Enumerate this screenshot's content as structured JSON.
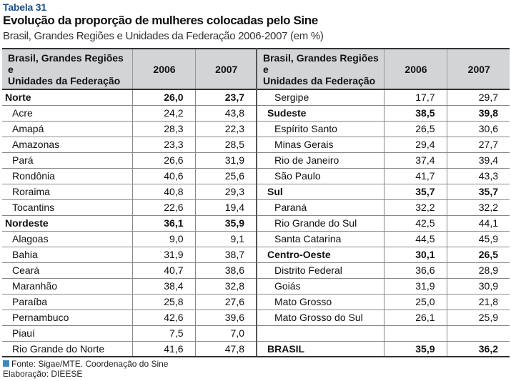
{
  "header": {
    "label": "Tabela 31",
    "title": "Evolução da proporção de mulheres colocadas pelo Sine",
    "subtitle": "Brasil, Grandes Regiões e Unidades da Federação 2006-2007 (em %)"
  },
  "table": {
    "col_region_line1": "Brasil, Grandes Regiões e",
    "col_region_line2": "Unidades da Federação",
    "col_2006": "2006",
    "col_2007": "2007",
    "rows": [
      {
        "left": {
          "name": "Norte",
          "v2006": "26,0",
          "v2007": "23,7"
        },
        "right": {
          "name": "Sergipe",
          "v2006": "17,7",
          "v2007": "29,7"
        }
      },
      {
        "left": {
          "name": "Acre",
          "v2006": "24,2",
          "v2007": "43,8"
        },
        "right": {
          "name": "Sudeste",
          "v2006": "38,5",
          "v2007": "39,8"
        }
      },
      {
        "left": {
          "name": "Amapá",
          "v2006": "28,3",
          "v2007": "22,3"
        },
        "right": {
          "name": "Espírito Santo",
          "v2006": "26,5",
          "v2007": "30,6"
        }
      },
      {
        "left": {
          "name": "Amazonas",
          "v2006": "23,3",
          "v2007": "28,5"
        },
        "right": {
          "name": "Minas Gerais",
          "v2006": "29,4",
          "v2007": "27,7"
        }
      },
      {
        "left": {
          "name": "Pará",
          "v2006": "26,6",
          "v2007": "31,9"
        },
        "right": {
          "name": "Rio de Janeiro",
          "v2006": "37,4",
          "v2007": "39,4"
        }
      },
      {
        "left": {
          "name": "Rondônia",
          "v2006": "40,6",
          "v2007": "25,6"
        },
        "right": {
          "name": "São Paulo",
          "v2006": "41,7",
          "v2007": "43,3"
        }
      },
      {
        "left": {
          "name": "Roraima",
          "v2006": "40,8",
          "v2007": "29,3"
        },
        "right": {
          "name": "Sul",
          "v2006": "35,7",
          "v2007": "35,7"
        }
      },
      {
        "left": {
          "name": "Tocantins",
          "v2006": "22,6",
          "v2007": "19,4"
        },
        "right": {
          "name": "Paraná",
          "v2006": "32,2",
          "v2007": "32,2"
        }
      },
      {
        "left": {
          "name": "Nordeste",
          "v2006": "36,1",
          "v2007": "35,9"
        },
        "right": {
          "name": "Rio Grande do Sul",
          "v2006": "42,5",
          "v2007": "44,1"
        }
      },
      {
        "left": {
          "name": "Alagoas",
          "v2006": "9,0",
          "v2007": "9,1"
        },
        "right": {
          "name": "Santa Catarina",
          "v2006": "44,5",
          "v2007": "45,9"
        }
      },
      {
        "left": {
          "name": "Bahia",
          "v2006": "31,9",
          "v2007": "38,7"
        },
        "right": {
          "name": "Centro-Oeste",
          "v2006": "30,1",
          "v2007": "26,5"
        }
      },
      {
        "left": {
          "name": "Ceará",
          "v2006": "40,7",
          "v2007": "38,6"
        },
        "right": {
          "name": "Distrito Federal",
          "v2006": "36,6",
          "v2007": "28,9"
        }
      },
      {
        "left": {
          "name": "Maranhão",
          "v2006": "38,4",
          "v2007": "32,8"
        },
        "right": {
          "name": "Goiás",
          "v2006": "31,9",
          "v2007": "30,9"
        }
      },
      {
        "left": {
          "name": "Paraíba",
          "v2006": "25,8",
          "v2007": "27,6"
        },
        "right": {
          "name": "Mato Grosso",
          "v2006": "25,0",
          "v2007": "21,8"
        }
      },
      {
        "left": {
          "name": "Pernambuco",
          "v2006": "42,6",
          "v2007": "39,6"
        },
        "right": {
          "name": "Mato Grosso do Sul",
          "v2006": "26,1",
          "v2007": "25,9"
        }
      },
      {
        "left": {
          "name": "Piauí",
          "v2006": "7,5",
          "v2007": "7,0"
        },
        "right": {
          "name": "",
          "v2006": "",
          "v2007": ""
        }
      },
      {
        "left": {
          "name": "Rio Grande do Norte",
          "v2006": "41,6",
          "v2007": "47,8"
        },
        "right": {
          "name": "BRASIL",
          "v2006": "35,9",
          "v2007": "36,2"
        }
      }
    ]
  },
  "footer": {
    "source": "Fonte: Sigae/MTE. Coordenação do Sine",
    "elaboration": "Elaboração: DIEESE"
  },
  "colors": {
    "label": "#1a4f86",
    "header_bg": "#d2d4d6",
    "source_marker": "#3f86c6"
  }
}
